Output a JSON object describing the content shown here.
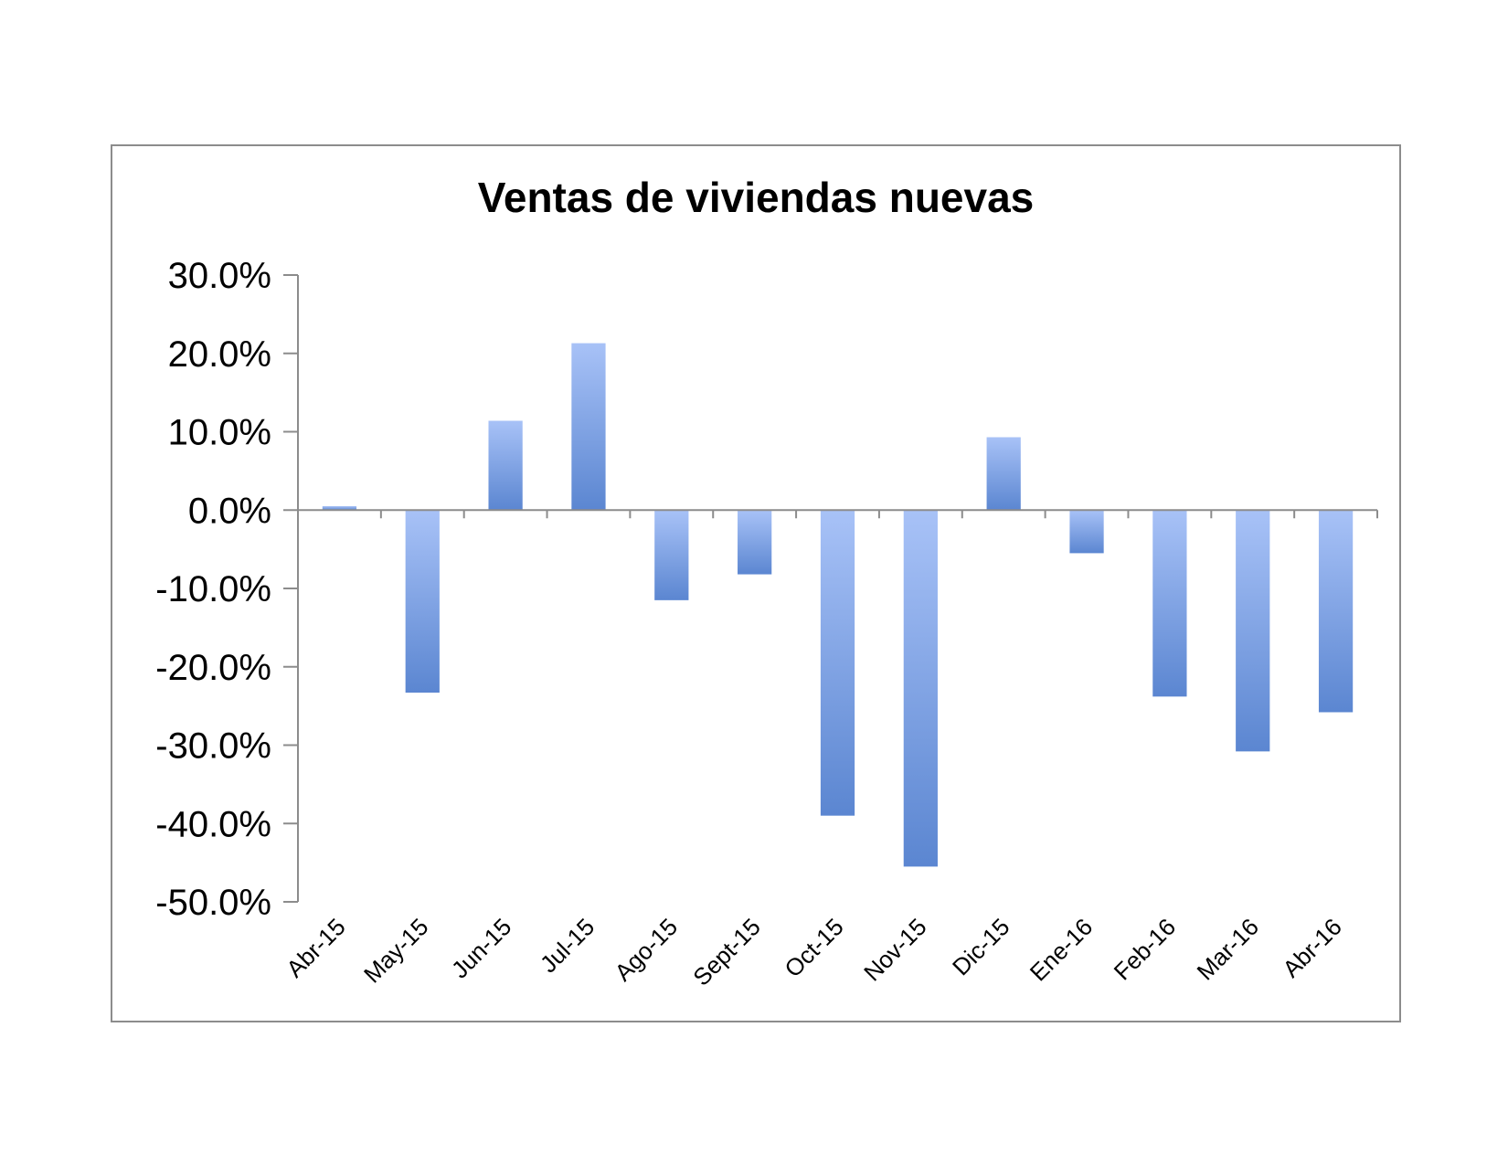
{
  "chart_data": {
    "type": "bar",
    "title": "Ventas de viviendas nuevas",
    "xlabel": "",
    "ylabel": "",
    "categories": [
      "Abr-15",
      "May-15",
      "Jun-15",
      "Jul-15",
      "Ago-15",
      "Sept-15",
      "Oct-15",
      "Nov-15",
      "Dic-15",
      "Ene-16",
      "Feb-16",
      "Mar-16",
      "Abr-16"
    ],
    "values": [
      0.5,
      -23.3,
      11.4,
      21.3,
      -11.5,
      -8.2,
      -39.0,
      -45.5,
      9.3,
      -5.5,
      -23.8,
      -30.8,
      -25.8
    ],
    "ylim": [
      -50,
      30
    ],
    "yticks": [
      30,
      20,
      10,
      0,
      -10,
      -20,
      -30,
      -40,
      -50
    ],
    "ytick_labels": [
      "30.0%",
      "20.0%",
      "10.0%",
      "0.0%",
      "-10.0%",
      "-20.0%",
      "-30.0%",
      "-40.0%",
      "-50.0%"
    ],
    "grid": false,
    "legend": "none",
    "colors": {
      "bar_light": "#a8c2f7",
      "bar_dark": "#5b86d1",
      "axis": "#8c8c8c",
      "frame": "#8c8c8c"
    }
  }
}
